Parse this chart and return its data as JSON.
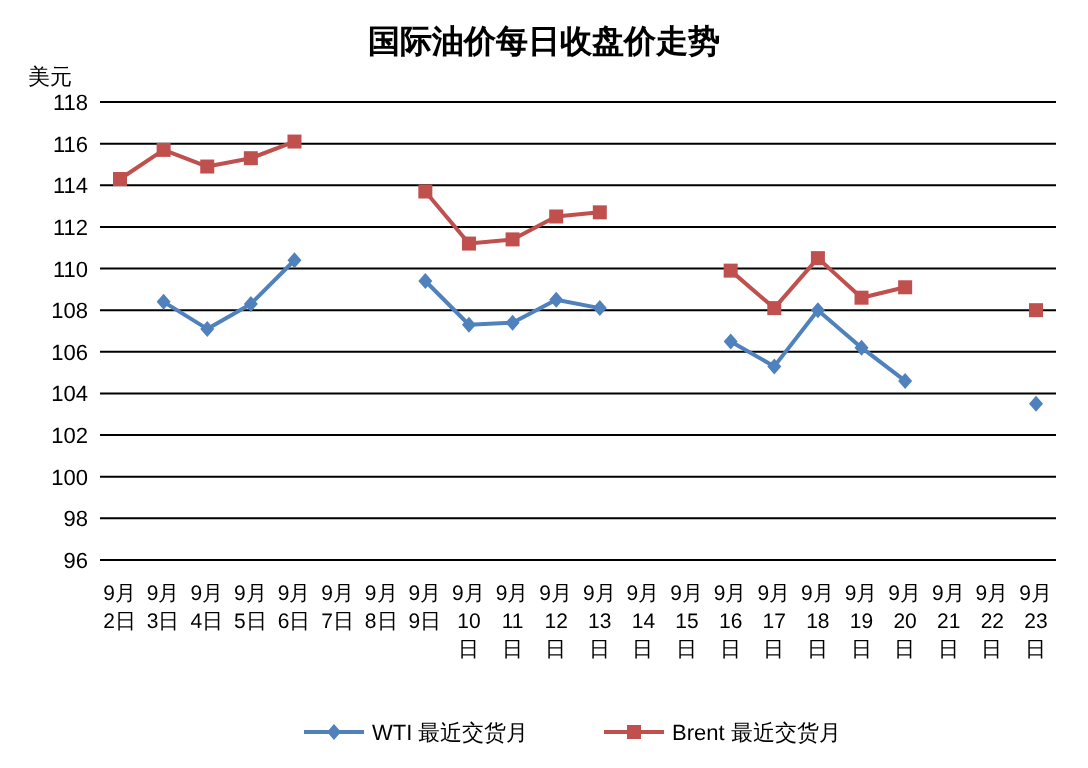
{
  "chart_data": {
    "type": "line",
    "title": "国际油价每日收盘价走势",
    "ylabel": "美元",
    "categories": [
      "9月2日",
      "9月3日",
      "9月4日",
      "9月5日",
      "9月6日",
      "9月7日",
      "9月8日",
      "9月9日",
      "9月10日",
      "9月11日",
      "9月12日",
      "9月13日",
      "9月14日",
      "9月15日",
      "9月16日",
      "9月17日",
      "9月18日",
      "9月19日",
      "9月20日",
      "9月21日",
      "9月22日",
      "9月23日"
    ],
    "series": [
      {
        "name": "WTI 最近交货月",
        "color": "#4f81bd",
        "marker": "diamond",
        "values": [
          null,
          108.4,
          107.1,
          108.3,
          110.4,
          null,
          null,
          109.4,
          107.3,
          107.4,
          108.5,
          108.1,
          null,
          null,
          106.5,
          105.3,
          108.0,
          106.2,
          104.6,
          null,
          null,
          103.5
        ]
      },
      {
        "name": "Brent 最近交货月",
        "color": "#c0504d",
        "marker": "square",
        "values": [
          114.3,
          115.7,
          114.9,
          115.3,
          116.1,
          null,
          null,
          113.7,
          111.2,
          111.4,
          112.5,
          112.7,
          null,
          null,
          109.9,
          108.1,
          110.5,
          108.6,
          109.1,
          null,
          null,
          108.0
        ]
      }
    ],
    "ylim": [
      96,
      118
    ],
    "yticks": [
      96,
      98,
      100,
      102,
      104,
      106,
      108,
      110,
      112,
      114,
      116,
      118
    ],
    "grid": "y",
    "legend": "bottom"
  }
}
